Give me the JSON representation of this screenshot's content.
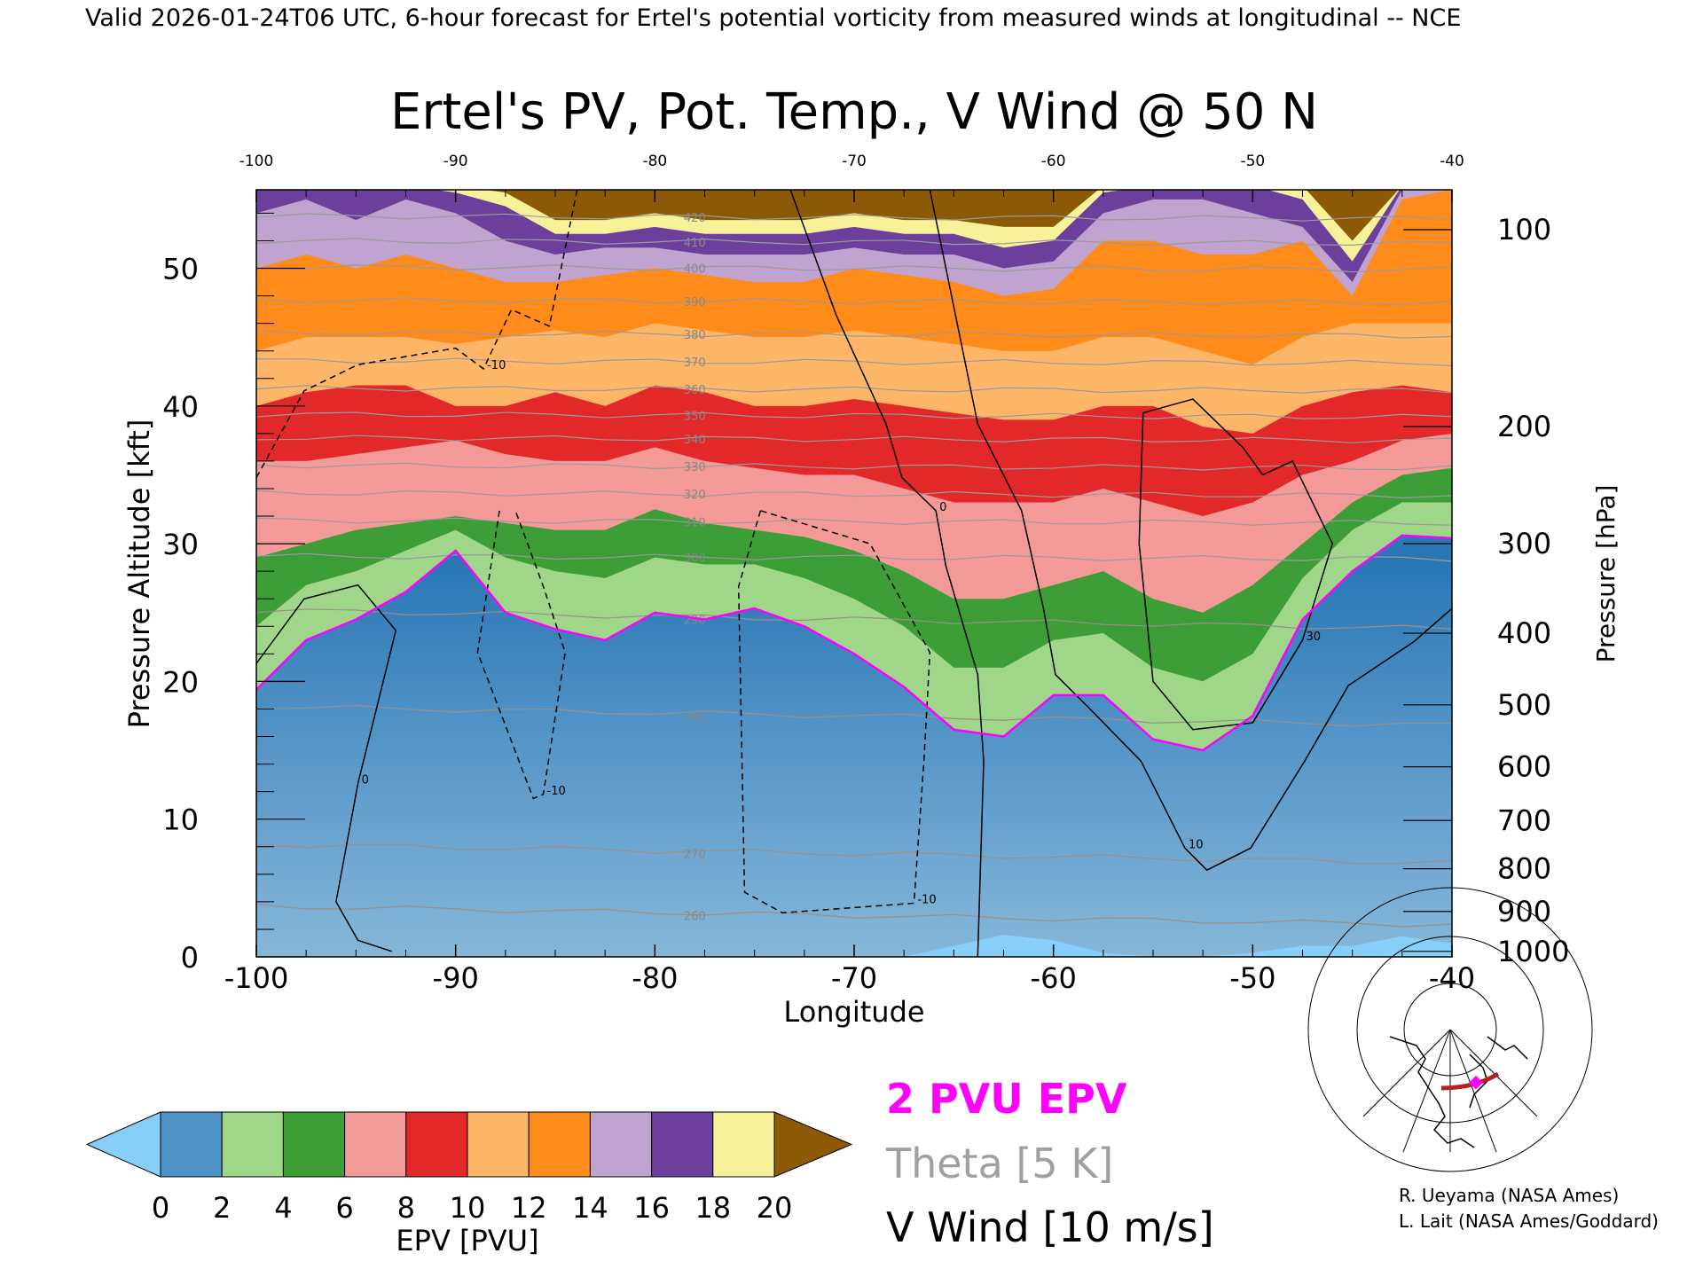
{
  "header": {
    "top_caption": "Valid 2026-01-24T06 UTC, 6-hour forecast for Ertel's potential vorticity from measured winds at longitudinal -- NCE"
  },
  "chart_data": {
    "type": "heatmap",
    "title": "Ertel's PV, Pot. Temp., V Wind @ 50 N",
    "xlabel": "Longitude",
    "ylabel_left": "Pressure Altitude [kft]",
    "ylabel_right": "Pressure [hPa]",
    "xlim": [
      -100,
      -40
    ],
    "ylim_kft": [
      0,
      55.7
    ],
    "x_ticks": [
      "-100",
      "-90",
      "-80",
      "-70",
      "-60",
      "-50",
      "-40"
    ],
    "x_tick_values": [
      -100,
      -90,
      -80,
      -70,
      -60,
      -50,
      -40
    ],
    "y_ticks_left": [
      "0",
      "10",
      "20",
      "30",
      "40",
      "50"
    ],
    "y_tick_values_left": [
      0,
      10,
      20,
      30,
      40,
      50
    ],
    "y_ticks_right": [
      {
        "label": "100",
        "kft": 52.8
      },
      {
        "label": "200",
        "kft": 38.5
      },
      {
        "label": "300",
        "kft": 30.0
      },
      {
        "label": "400",
        "kft": 23.5
      },
      {
        "label": "500",
        "kft": 18.3
      },
      {
        "label": "600",
        "kft": 13.8
      },
      {
        "label": "700",
        "kft": 9.9
      },
      {
        "label": "800",
        "kft": 6.4
      },
      {
        "label": "900",
        "kft": 3.3
      },
      {
        "label": "1000",
        "kft": 0.4
      }
    ],
    "grid_longitudes": [
      -100,
      -97.5,
      -95,
      -92.5,
      -90,
      -87.5,
      -85,
      -82.5,
      -80,
      -77.5,
      -75,
      -72.5,
      -70,
      -67.5,
      -65,
      -62.5,
      -60,
      -57.5,
      -55,
      -52.5,
      -50,
      -47.5,
      -45,
      -42.5,
      -40
    ],
    "epv_level_altitudes_kft": {
      "0": [
        0,
        0,
        0,
        0,
        0,
        0,
        0,
        0,
        0,
        0,
        0,
        0,
        0,
        0,
        0.8,
        1.6,
        1.2,
        0.3,
        0,
        0,
        0.3,
        0.8,
        0.8,
        1.5,
        1
      ],
      "2": [
        19.4,
        23,
        24.5,
        26.5,
        29.5,
        25,
        23.8,
        23,
        25,
        24.5,
        25.3,
        24,
        22,
        19.6,
        16.5,
        16,
        19,
        19,
        15.8,
        15,
        17.5,
        24.5,
        28,
        30.6,
        30.4
      ],
      "4": [
        24,
        27,
        28,
        29.5,
        31,
        29,
        28,
        27.5,
        29,
        28.5,
        28.5,
        27.5,
        26,
        24,
        21,
        21,
        23,
        23.5,
        21,
        20,
        22,
        27.5,
        31,
        33,
        33
      ],
      "6": [
        29,
        30,
        31,
        31.5,
        32,
        31.5,
        31,
        31,
        32.5,
        31.5,
        31,
        30.5,
        29.5,
        28,
        26,
        26,
        27,
        28,
        26,
        25,
        27,
        30,
        33,
        35,
        35.5
      ],
      "8": [
        36,
        36,
        36.5,
        37,
        37.5,
        36.5,
        36,
        36,
        37,
        36,
        35.5,
        35,
        35,
        34,
        33,
        33,
        33,
        34,
        33,
        32,
        33,
        35,
        36,
        37.5,
        38
      ],
      "10": [
        40,
        41,
        41.5,
        41.5,
        40,
        40,
        41,
        40,
        41.5,
        41,
        40,
        40,
        40.5,
        40,
        39.5,
        39,
        39,
        40,
        40,
        38.5,
        38,
        40,
        41,
        41.5,
        41
      ],
      "12": [
        44,
        45,
        45,
        45,
        44.5,
        45,
        45.5,
        45,
        46,
        45.5,
        45,
        45,
        45.5,
        45,
        44.5,
        44,
        44,
        45,
        45,
        44,
        43,
        45,
        46,
        46,
        46
      ],
      "14": [
        50,
        51,
        50,
        51,
        50,
        49,
        49,
        49.5,
        50,
        49.5,
        49,
        49,
        50,
        49.5,
        49,
        48,
        48.5,
        52,
        52,
        51,
        51,
        52,
        48,
        55,
        55.7
      ],
      "16": [
        54,
        55,
        53.5,
        55,
        54,
        52,
        51,
        51.5,
        51.5,
        51,
        51,
        51,
        51.5,
        51,
        51,
        50,
        50.5,
        54,
        55,
        55,
        54,
        53,
        49,
        55.7,
        55.7
      ],
      "18": [
        56,
        56,
        56,
        56,
        55.5,
        54.5,
        52.5,
        52.5,
        53,
        52.5,
        52.5,
        52.5,
        53,
        52.5,
        52.5,
        51.5,
        52,
        55.5,
        56,
        56,
        56,
        55,
        50.5,
        56,
        56
      ],
      "20": [
        56,
        56,
        56,
        56,
        56,
        55.5,
        53.5,
        53.5,
        54,
        53.5,
        53.5,
        53.5,
        54,
        53.5,
        53.5,
        53,
        53,
        56,
        56,
        56,
        56,
        56,
        52,
        56,
        56
      ]
    },
    "colorbar": {
      "label": "EPV [PVU]",
      "ticks": [
        "0",
        "2",
        "4",
        "6",
        "8",
        "10",
        "12",
        "14",
        "16",
        "18",
        "20"
      ],
      "band_colors": [
        "#4f93c6",
        "#9fd68a",
        "#3d9e38",
        "#f39a98",
        "#e3282a",
        "#fdb668",
        "#ff8c1a",
        "#c0a3cf",
        "#6d3f9c",
        "#f7f29a"
      ],
      "under_color": "#87cefa",
      "over_color": "#8c5a06"
    },
    "theta_isentropes": [
      {
        "k": 260,
        "kft": 3.0
      },
      {
        "k": 270,
        "kft": 7.5
      },
      {
        "k": 280,
        "kft": 17.5
      },
      {
        "k": 290,
        "kft": 24.5
      },
      {
        "k": 300,
        "kft": 29.0
      },
      {
        "k": 310,
        "kft": 31.6
      },
      {
        "k": 320,
        "kft": 33.6
      },
      {
        "k": 330,
        "kft": 35.6
      },
      {
        "k": 340,
        "kft": 37.6
      },
      {
        "k": 350,
        "kft": 39.3
      },
      {
        "k": 360,
        "kft": 41.2
      },
      {
        "k": 370,
        "kft": 43.2
      },
      {
        "k": 380,
        "kft": 45.2
      },
      {
        "k": 390,
        "kft": 47.6
      },
      {
        "k": 400,
        "kft": 50.0
      },
      {
        "k": 410,
        "kft": 51.9
      },
      {
        "k": 420,
        "kft": 53.7
      }
    ],
    "v_wind_contours": [
      {
        "label": "0",
        "dashed": false,
        "points": [
          [
            -73.2,
            55.7
          ],
          [
            -70.9,
            46.6
          ],
          [
            -68.4,
            38.7
          ],
          [
            -67.6,
            34.8
          ],
          [
            -65.9,
            32.4
          ],
          [
            -65.4,
            28.4
          ],
          [
            -63.8,
            20.5
          ],
          [
            -63.5,
            14.2
          ],
          [
            -63.8,
            0
          ]
        ]
      },
      {
        "label": "10",
        "dashed": false,
        "points": [
          [
            -66.2,
            55.7
          ],
          [
            -63.8,
            38.7
          ],
          [
            -61.6,
            32.4
          ],
          [
            -60.5,
            25.3
          ],
          [
            -59.9,
            20.5
          ],
          [
            -58.3,
            18.2
          ],
          [
            -55.6,
            14.2
          ],
          [
            -53.4,
            7.9
          ],
          [
            -52.3,
            6.3
          ],
          [
            -50.1,
            7.9
          ],
          [
            -47.4,
            14.2
          ],
          [
            -45.2,
            19.7
          ],
          [
            -41.9,
            22.9
          ],
          [
            -40,
            25.3
          ]
        ]
      },
      {
        "label": "0",
        "dashed": false,
        "points": [
          [
            -100,
            21.3
          ],
          [
            -97.6,
            26
          ],
          [
            -94.9,
            27
          ],
          [
            -93,
            23.7
          ],
          [
            -94.9,
            12.6
          ],
          [
            -96,
            4
          ],
          [
            -94.9,
            1.2
          ],
          [
            -93.2,
            0.4
          ]
        ]
      },
      {
        "label": "30",
        "dashed": false,
        "points": [
          [
            -55.5,
            39.5
          ],
          [
            -53,
            40.5
          ],
          [
            -50.5,
            37
          ],
          [
            -49.5,
            35
          ],
          [
            -48,
            36
          ],
          [
            -46,
            30
          ],
          [
            -47.5,
            23
          ],
          [
            -50,
            17
          ],
          [
            -53,
            16.5
          ],
          [
            -55,
            20
          ],
          [
            -55.7,
            30
          ],
          [
            -55.5,
            39.5
          ]
        ]
      },
      {
        "label": "-10",
        "dashed": true,
        "points": [
          [
            -100,
            34.8
          ],
          [
            -97.6,
            41.1
          ],
          [
            -94.9,
            43
          ],
          [
            -90,
            44.2
          ],
          [
            -88.6,
            42.7
          ],
          [
            -87.2,
            47
          ],
          [
            -85.3,
            45.8
          ],
          [
            -83.9,
            55.7
          ]
        ]
      },
      {
        "label": "-10",
        "dashed": true,
        "points": [
          [
            -74.7,
            32.4
          ],
          [
            -75.8,
            26.9
          ],
          [
            -75.5,
            4.7
          ],
          [
            -73.6,
            3.2
          ],
          [
            -67,
            3.9
          ],
          [
            -66.5,
            14.2
          ],
          [
            -66.2,
            22.1
          ],
          [
            -69.2,
            30
          ],
          [
            -74.7,
            32.4
          ]
        ]
      },
      {
        "label": "-10",
        "dashed": true,
        "points": [
          [
            -87.8,
            32.4
          ],
          [
            -88.9,
            22.1
          ],
          [
            -86.1,
            11.5
          ],
          [
            -85.6,
            11.8
          ],
          [
            -84.5,
            22.1
          ],
          [
            -85.6,
            26.9
          ],
          [
            -87,
            32.4
          ]
        ]
      }
    ],
    "legend": {
      "pv2": "2 PVU EPV",
      "theta": "Theta [5 K]",
      "vwind": "V Wind [10 m/s]",
      "pv2_color": "#ff00ff",
      "theta_color": "#a0a0a0",
      "vwind_color": "#000000"
    }
  },
  "credits": {
    "line1": "R. Ueyama (NASA Ames)",
    "line2": "L. Lait (NASA Ames/Goddard)"
  }
}
